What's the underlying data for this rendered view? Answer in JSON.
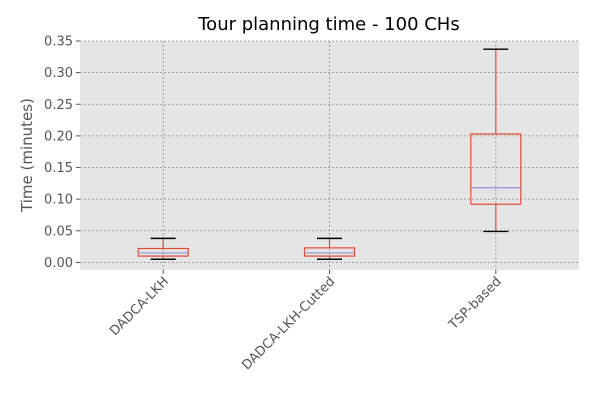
{
  "chart_data": {
    "type": "box",
    "title": "Tour planning time - 100 CHs",
    "xlabel": "",
    "ylabel": "Time (minutes)",
    "ylim": [
      -0.012,
      0.35
    ],
    "yticks": [
      0.0,
      0.05,
      0.1,
      0.15,
      0.2,
      0.25,
      0.3,
      0.35
    ],
    "ytick_labels": [
      "0.00",
      "0.05",
      "0.10",
      "0.15",
      "0.20",
      "0.25",
      "0.30",
      "0.35"
    ],
    "grid": true,
    "categories": [
      "DADCA-LKH",
      "DADCA-LKH-Cutted",
      "TSP-based"
    ],
    "boxes": [
      {
        "whisker_low": 0.005,
        "q1": 0.01,
        "median": 0.015,
        "q3": 0.022,
        "whisker_high": 0.038
      },
      {
        "whisker_low": 0.005,
        "q1": 0.01,
        "median": 0.015,
        "q3": 0.023,
        "whisker_high": 0.038
      },
      {
        "whisker_low": 0.049,
        "q1": 0.092,
        "median": 0.118,
        "q3": 0.203,
        "whisker_high": 0.337
      }
    ],
    "colors": {
      "plot_background": "#e5e5e5",
      "grid": "#8c8c8c",
      "box": "#e24a33",
      "median": "#988ed5",
      "cap": "#000000",
      "tick_label": "#555555"
    }
  }
}
